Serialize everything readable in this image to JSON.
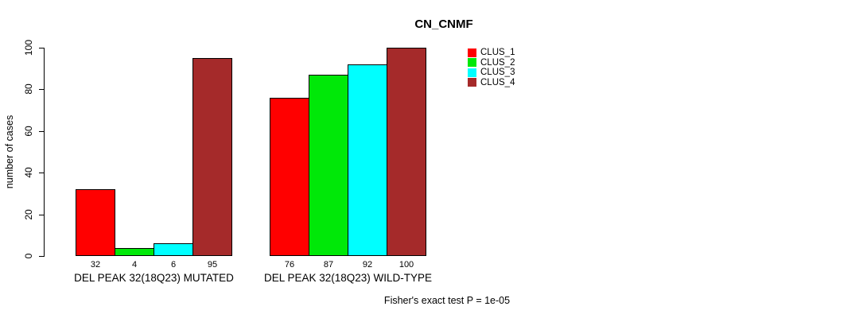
{
  "chart_data": {
    "type": "bar",
    "title": "CN_CNMF",
    "ylabel": "number of cases",
    "ylim": [
      0,
      100
    ],
    "yticks": [
      0,
      20,
      40,
      60,
      80,
      100
    ],
    "grid": false,
    "legend_position": "top-right-of-plot",
    "categories": [
      "DEL PEAK 32(18Q23) MUTATED",
      "DEL PEAK 32(18Q23) WILD-TYPE"
    ],
    "series": [
      {
        "name": "CLUS_1",
        "color": "#FF0000",
        "values": [
          32,
          76
        ]
      },
      {
        "name": "CLUS_2",
        "color": "#00E808",
        "values": [
          4,
          87
        ]
      },
      {
        "name": "CLUS_3",
        "color": "#00FFFF",
        "values": [
          6,
          92
        ]
      },
      {
        "name": "CLUS_4",
        "color": "#A52A2A",
        "values": [
          95,
          100
        ]
      }
    ],
    "bar_value_labels_shown": true,
    "footnote": "Fisher's exact test P = 1e-05"
  },
  "colors": {
    "axis": "#000000",
    "text": "#000000",
    "background": "#FFFFFF"
  }
}
